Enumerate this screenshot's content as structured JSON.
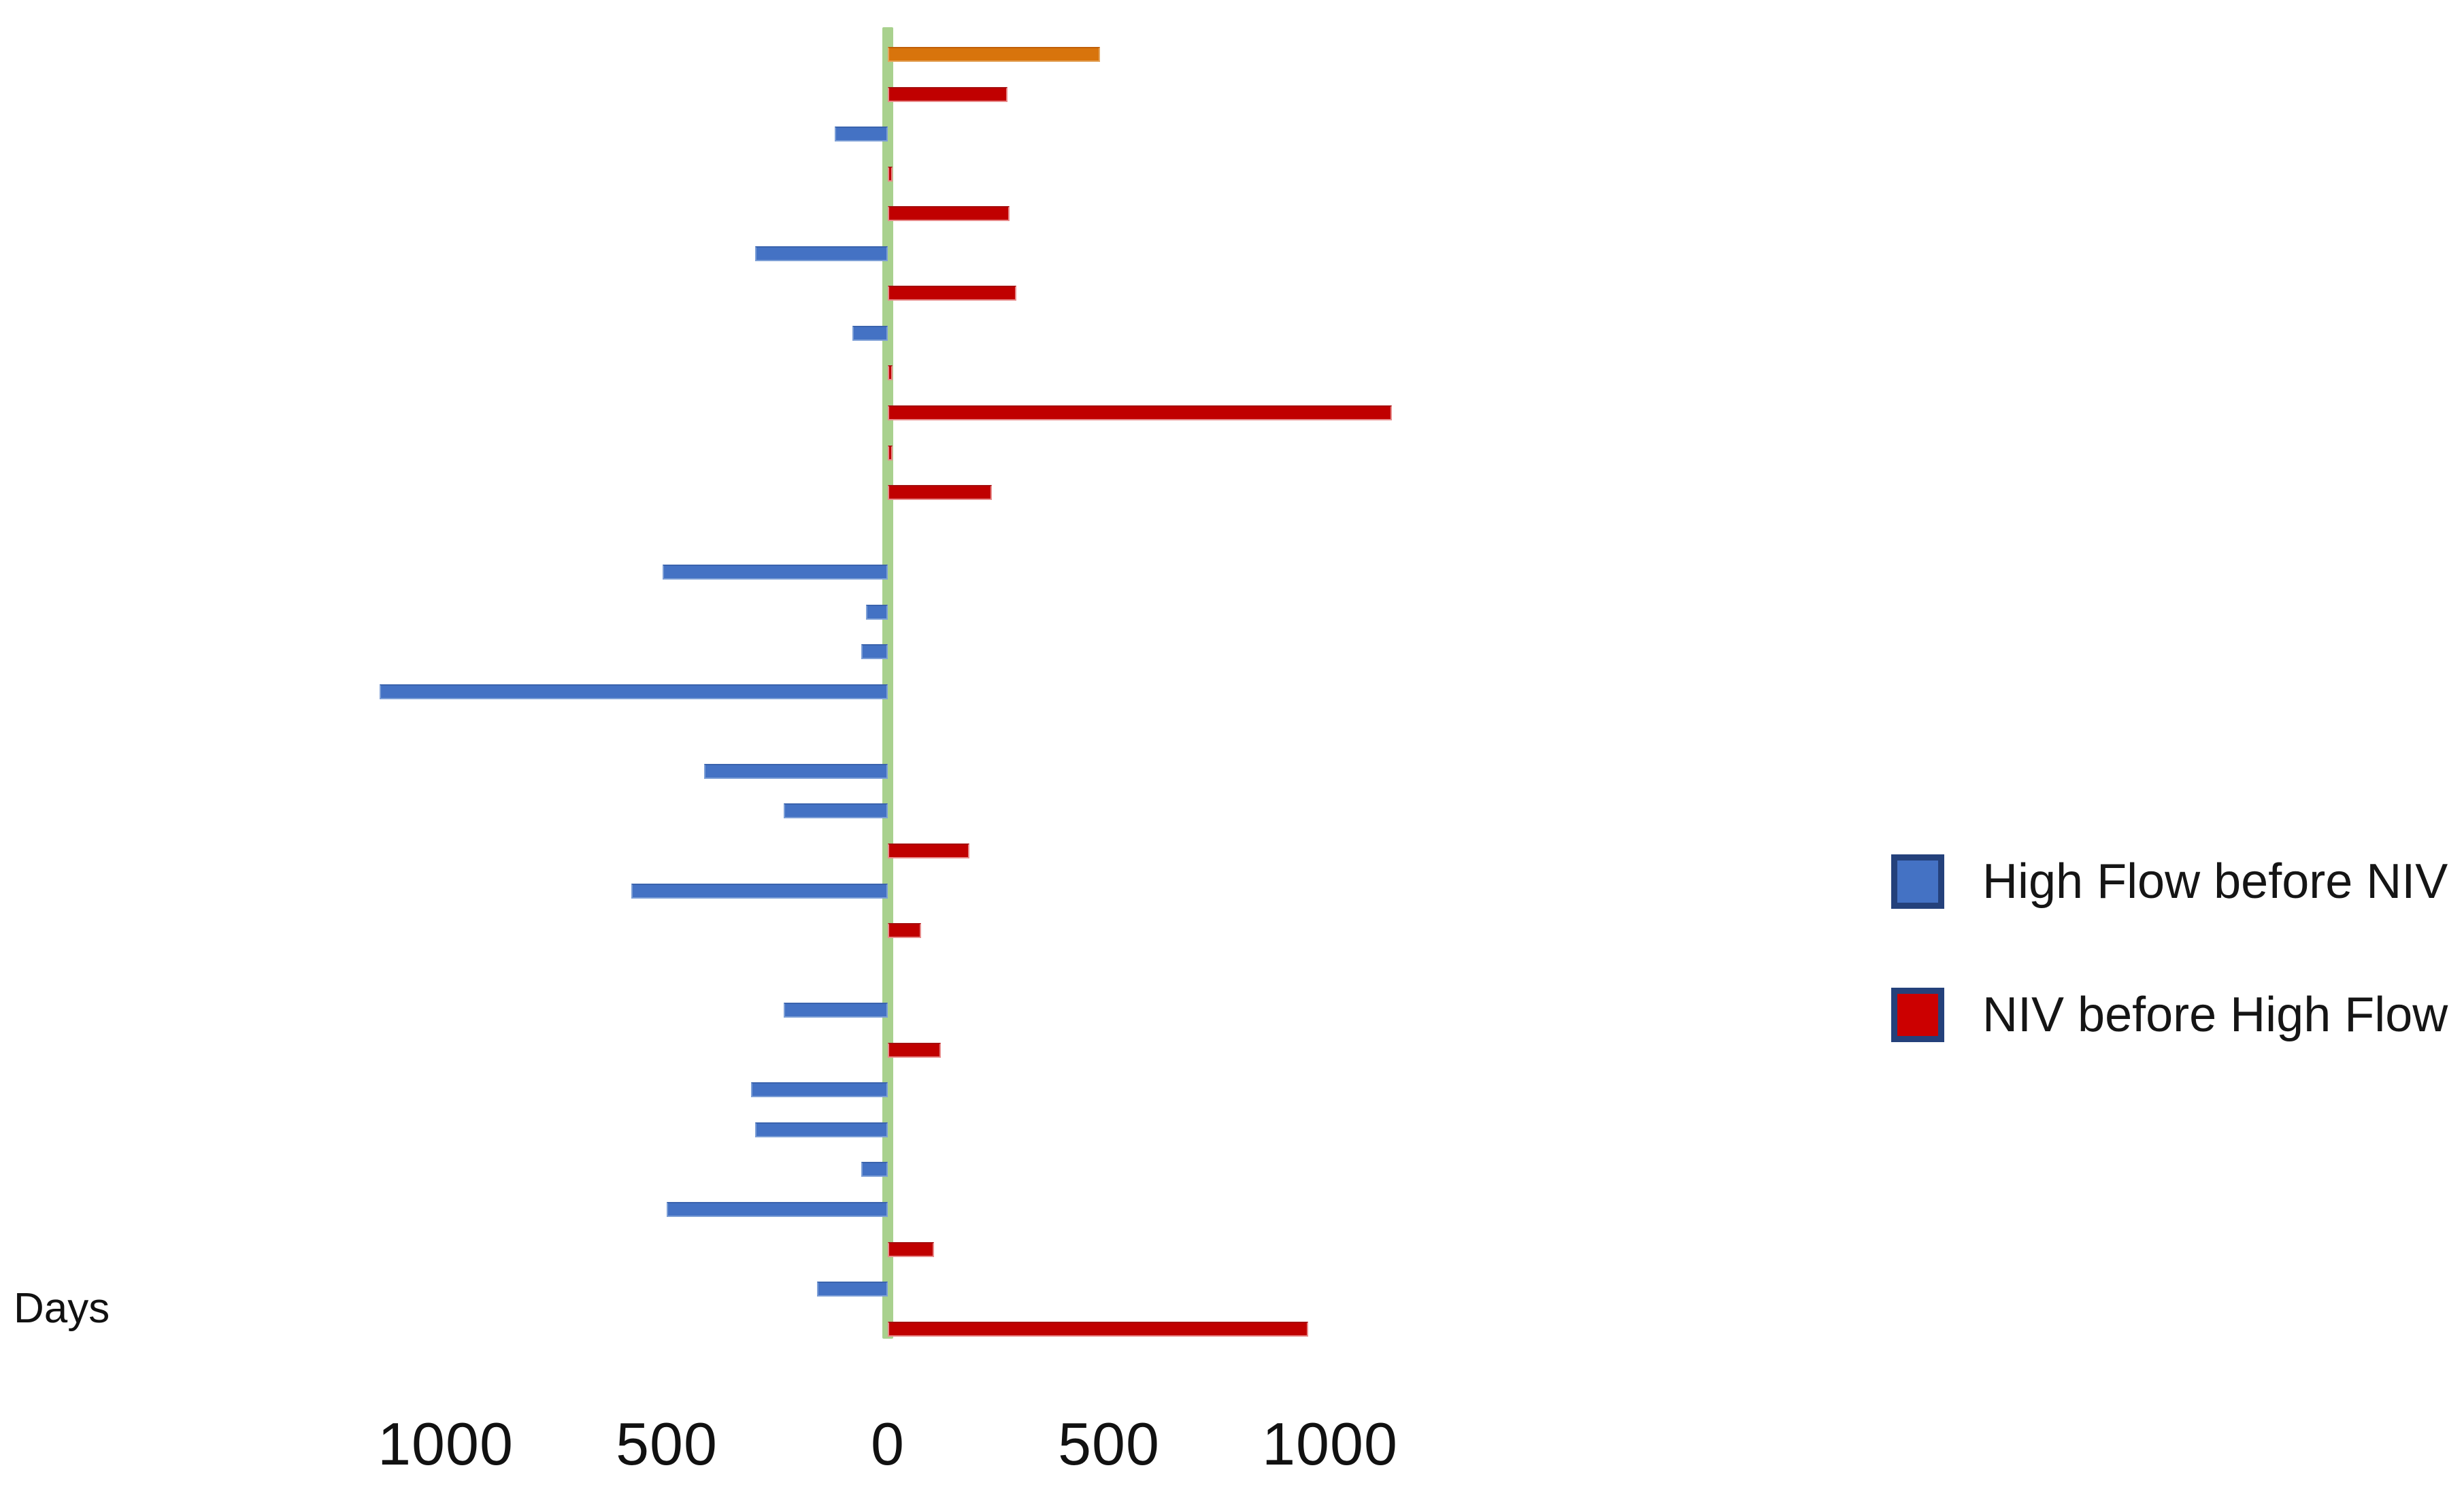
{
  "axis": {
    "days_label": "Days",
    "ticks": [
      {
        "label": "1000",
        "days": -1000
      },
      {
        "label": "500",
        "days": -500
      },
      {
        "label": "0",
        "days": 0
      },
      {
        "label": "500",
        "days": 500
      },
      {
        "label": "1000",
        "days": 1000
      }
    ]
  },
  "legend": {
    "items": [
      {
        "label": "High Flow before NIV",
        "fill": "#4472C4",
        "border": "#24417B"
      },
      {
        "label": "NIV before High Flow",
        "fill": "#CC0000",
        "border": "#24417B"
      }
    ]
  },
  "colors": {
    "blue": "#4472C4",
    "red": "#C00000",
    "orange": "#D8740C",
    "axis_green": "#A9D18E"
  },
  "chart_data": {
    "type": "bar",
    "orientation": "horizontal-diverging",
    "unit": "days",
    "xlabel": "Days",
    "xlim": [
      -1250,
      1250
    ],
    "x_ticks": [
      -1000,
      -500,
      0,
      500,
      1000
    ],
    "grid": false,
    "legend_position": "right",
    "series_meaning": {
      "negative_left_blue": "High Flow before NIV",
      "positive_right_red": "NIV before High Flow"
    },
    "rows": [
      {
        "patient": 1,
        "days": 480,
        "series": "orange"
      },
      {
        "patient": 2,
        "days": 270,
        "series": "red"
      },
      {
        "patient": 3,
        "days": -120,
        "series": "blue"
      },
      {
        "patient": 4,
        "days": 10,
        "series": "red"
      },
      {
        "patient": 5,
        "days": 275,
        "series": "red"
      },
      {
        "patient": 6,
        "days": -300,
        "series": "blue"
      },
      {
        "patient": 7,
        "days": 290,
        "series": "red"
      },
      {
        "patient": 8,
        "days": -80,
        "series": "blue"
      },
      {
        "patient": 9,
        "days": 10,
        "series": "red"
      },
      {
        "patient": 10,
        "days": 1140,
        "series": "red"
      },
      {
        "patient": 11,
        "days": 10,
        "series": "red"
      },
      {
        "patient": 12,
        "days": 235,
        "series": "red"
      },
      {
        "patient": 13,
        "days": 0,
        "series": "none"
      },
      {
        "patient": 14,
        "days": -510,
        "series": "blue"
      },
      {
        "patient": 15,
        "days": -50,
        "series": "blue"
      },
      {
        "patient": 16,
        "days": -60,
        "series": "blue"
      },
      {
        "patient": 17,
        "days": -1150,
        "series": "blue"
      },
      {
        "patient": 18,
        "days": 0,
        "series": "none"
      },
      {
        "patient": 19,
        "days": -415,
        "series": "blue"
      },
      {
        "patient": 20,
        "days": -235,
        "series": "blue"
      },
      {
        "patient": 21,
        "days": 185,
        "series": "red"
      },
      {
        "patient": 22,
        "days": -580,
        "series": "blue"
      },
      {
        "patient": 23,
        "days": 75,
        "series": "red"
      },
      {
        "patient": 24,
        "days": 0,
        "series": "none"
      },
      {
        "patient": 25,
        "days": -235,
        "series": "blue"
      },
      {
        "patient": 26,
        "days": 120,
        "series": "red"
      },
      {
        "patient": 27,
        "days": -310,
        "series": "blue"
      },
      {
        "patient": 28,
        "days": -300,
        "series": "blue"
      },
      {
        "patient": 29,
        "days": -60,
        "series": "blue"
      },
      {
        "patient": 30,
        "days": -500,
        "series": "blue"
      },
      {
        "patient": 31,
        "days": 105,
        "series": "red"
      },
      {
        "patient": 32,
        "days": -160,
        "series": "blue"
      },
      {
        "patient": 33,
        "days": 950,
        "series": "red"
      }
    ]
  }
}
